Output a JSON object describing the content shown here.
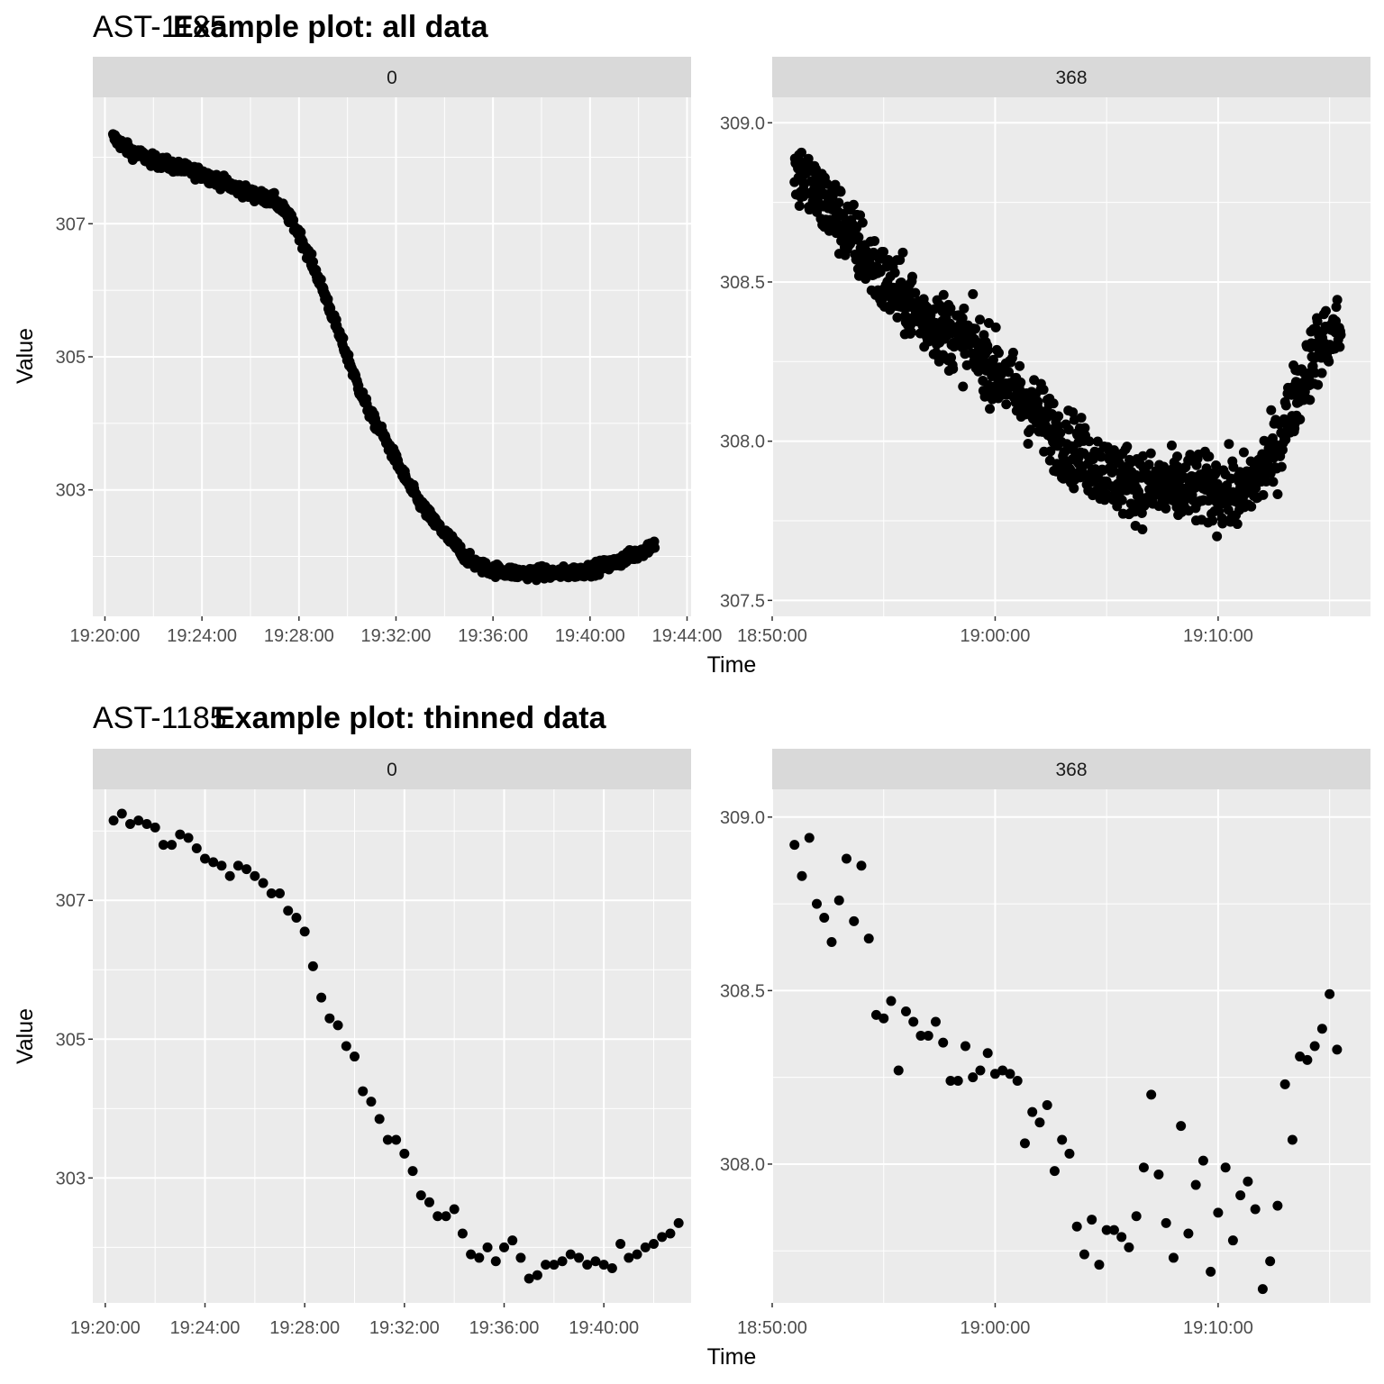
{
  "chart_data": [
    {
      "type": "scatter",
      "title": "Example plot: all data",
      "tag": "AST-1185",
      "xlabel": "Time",
      "ylabel": "Value",
      "panels": [
        {
          "label": "0",
          "x_range": [
            "19:20:00",
            "19:43:00"
          ],
          "x_ticks": [
            "19:20:00",
            "19:24:00",
            "19:28:00",
            "19:32:00",
            "19:36:00",
            "19:40:00",
            "19:44:00"
          ],
          "y_ticks": [
            303,
            305,
            307
          ],
          "ylim": [
            301.1,
            308.9
          ],
          "x": [
            "19:20:20",
            "19:21:00",
            "19:22:00",
            "19:23:00",
            "19:24:00",
            "19:25:00",
            "19:26:00",
            "19:27:00",
            "19:27:30",
            "19:28:00",
            "19:28:30",
            "19:29:00",
            "19:29:30",
            "19:30:00",
            "19:30:30",
            "19:31:00",
            "19:31:30",
            "19:32:00",
            "19:32:30",
            "19:33:00",
            "19:33:30",
            "19:34:00",
            "19:34:30",
            "19:35:00",
            "19:35:30",
            "19:36:00",
            "19:37:00",
            "19:38:00",
            "19:39:00",
            "19:40:00",
            "19:41:00",
            "19:42:00",
            "19:42:40"
          ],
          "y": [
            308.3,
            308.1,
            307.95,
            307.85,
            307.75,
            307.6,
            307.45,
            307.35,
            307.15,
            306.85,
            306.45,
            306.0,
            305.5,
            305.0,
            304.5,
            304.1,
            303.8,
            303.45,
            303.1,
            302.8,
            302.55,
            302.35,
            302.15,
            301.95,
            301.85,
            301.8,
            301.75,
            301.75,
            301.75,
            301.8,
            301.9,
            302.05,
            302.2
          ],
          "description": "dense noisy time series (~1000 points) following the curve above"
        },
        {
          "label": "368",
          "x_range": [
            "18:51:00",
            "19:15:30"
          ],
          "x_ticks": [
            "18:50:00",
            "19:00:00",
            "19:10:00"
          ],
          "y_ticks": [
            "307.5",
            "308.0",
            "308.5",
            "309.0"
          ],
          "ylim": [
            307.45,
            309.08
          ],
          "x": [
            "18:51:00",
            "18:53:00",
            "18:55:00",
            "18:57:00",
            "18:59:00",
            "19:01:00",
            "19:03:00",
            "19:05:00",
            "19:07:00",
            "19:09:00",
            "19:11:00",
            "19:12:30",
            "19:13:30",
            "19:14:30",
            "19:15:30"
          ],
          "y": [
            308.85,
            308.7,
            308.5,
            308.38,
            308.3,
            308.15,
            308.0,
            307.9,
            307.85,
            307.85,
            307.83,
            307.95,
            308.15,
            308.3,
            308.35
          ],
          "description": "dense noisy time series (~1000 points) following the curve above"
        }
      ]
    },
    {
      "type": "scatter",
      "title": "Example plot: thinned data",
      "tag": "AST-1185",
      "xlabel": "Time",
      "ylabel": "Value",
      "panels": [
        {
          "label": "0",
          "x_ticks": [
            "19:20:00",
            "19:24:00",
            "19:28:00",
            "19:32:00",
            "19:36:00",
            "19:40:00"
          ],
          "y_ticks": [
            303,
            305,
            307
          ],
          "ylim": [
            301.2,
            308.6
          ],
          "x": [
            "19:20:20",
            "19:20:40",
            "19:21:00",
            "19:21:20",
            "19:21:40",
            "19:22:00",
            "19:22:20",
            "19:22:40",
            "19:23:00",
            "19:23:20",
            "19:23:40",
            "19:24:00",
            "19:24:20",
            "19:24:40",
            "19:25:00",
            "19:25:20",
            "19:25:40",
            "19:26:00",
            "19:26:20",
            "19:26:40",
            "19:27:00",
            "19:27:20",
            "19:27:40",
            "19:28:00",
            "19:28:20",
            "19:28:40",
            "19:29:00",
            "19:29:20",
            "19:29:40",
            "19:30:00",
            "19:30:20",
            "19:30:40",
            "19:31:00",
            "19:31:20",
            "19:31:40",
            "19:32:00",
            "19:32:20",
            "19:32:40",
            "19:33:00",
            "19:33:20",
            "19:33:40",
            "19:34:00",
            "19:34:20",
            "19:34:40",
            "19:35:00",
            "19:35:20",
            "19:35:40",
            "19:36:00",
            "19:36:20",
            "19:36:40",
            "19:37:00",
            "19:37:20",
            "19:37:40",
            "19:38:00",
            "19:38:20",
            "19:38:40",
            "19:39:00",
            "19:39:20",
            "19:39:40",
            "19:40:00",
            "19:40:20",
            "19:40:40",
            "19:41:00",
            "19:41:20",
            "19:41:40",
            "19:42:00",
            "19:42:20",
            "19:42:40",
            "19:43:00"
          ],
          "y": [
            308.15,
            308.25,
            308.1,
            308.15,
            308.1,
            308.05,
            307.8,
            307.8,
            307.95,
            307.9,
            307.75,
            307.6,
            307.55,
            307.5,
            307.35,
            307.5,
            307.45,
            307.35,
            307.25,
            307.1,
            307.1,
            306.85,
            306.75,
            306.55,
            306.05,
            305.6,
            305.3,
            305.2,
            304.9,
            304.75,
            304.25,
            304.1,
            303.85,
            303.55,
            303.55,
            303.35,
            303.1,
            302.75,
            302.65,
            302.45,
            302.45,
            302.55,
            302.2,
            301.9,
            301.85,
            302.0,
            301.8,
            302.0,
            302.1,
            301.85,
            301.55,
            301.6,
            301.75,
            301.75,
            301.8,
            301.9,
            301.85,
            301.75,
            301.8,
            301.75,
            301.7,
            302.05,
            301.85,
            301.9,
            302.0,
            302.05,
            302.15,
            302.2,
            302.35
          ]
        },
        {
          "label": "368",
          "x_ticks": [
            "18:50:00",
            "19:00:00",
            "19:10:00"
          ],
          "y_ticks": [
            "308.0",
            "308.5",
            "309.0"
          ],
          "ylim": [
            307.6,
            309.08
          ],
          "x": [
            "18:51:00",
            "18:51:20",
            "18:51:40",
            "18:52:00",
            "18:52:20",
            "18:52:40",
            "18:53:00",
            "18:53:20",
            "18:53:40",
            "18:54:00",
            "18:54:20",
            "18:54:40",
            "18:55:00",
            "18:55:20",
            "18:55:40",
            "18:56:00",
            "18:56:20",
            "18:56:40",
            "18:57:00",
            "18:57:20",
            "18:57:40",
            "18:58:00",
            "18:58:20",
            "18:58:40",
            "18:59:00",
            "18:59:20",
            "18:59:40",
            "19:00:00",
            "19:00:20",
            "19:00:40",
            "19:01:00",
            "19:01:20",
            "19:01:40",
            "19:02:00",
            "19:02:20",
            "19:02:40",
            "19:03:00",
            "19:03:20",
            "19:03:40",
            "19:04:00",
            "19:04:20",
            "19:04:40",
            "19:05:00",
            "19:05:20",
            "19:05:40",
            "19:06:00",
            "19:06:20",
            "19:06:40",
            "19:07:00",
            "19:07:20",
            "19:07:40",
            "19:08:00",
            "19:08:20",
            "19:08:40",
            "19:09:00",
            "19:09:20",
            "19:09:40",
            "19:10:00",
            "19:10:20",
            "19:10:40",
            "19:11:00",
            "19:11:20",
            "19:11:40",
            "19:12:00",
            "19:12:20",
            "19:12:40",
            "19:13:00",
            "19:13:20",
            "19:13:40",
            "19:14:00",
            "19:14:20",
            "19:14:40",
            "19:15:00",
            "19:15:20"
          ],
          "y": [
            308.92,
            308.83,
            308.94,
            308.75,
            308.71,
            308.64,
            308.76,
            308.88,
            308.7,
            308.86,
            308.65,
            308.43,
            308.42,
            308.47,
            308.27,
            308.44,
            308.41,
            308.37,
            308.37,
            308.41,
            308.35,
            308.24,
            308.24,
            308.34,
            308.25,
            308.27,
            308.32,
            308.26,
            308.27,
            308.26,
            308.24,
            308.06,
            308.15,
            308.12,
            308.17,
            307.98,
            308.07,
            308.03,
            307.82,
            307.74,
            307.84,
            307.71,
            307.81,
            307.81,
            307.79,
            307.76,
            307.85,
            307.99,
            308.2,
            307.97,
            307.83,
            307.73,
            308.11,
            307.8,
            307.94,
            308.01,
            307.69,
            307.86,
            307.99,
            307.78,
            307.91,
            307.95,
            307.87,
            307.64,
            307.72,
            307.88,
            308.23,
            308.07,
            308.31,
            308.3,
            308.34,
            308.39,
            308.49,
            308.33
          ]
        }
      ]
    }
  ]
}
